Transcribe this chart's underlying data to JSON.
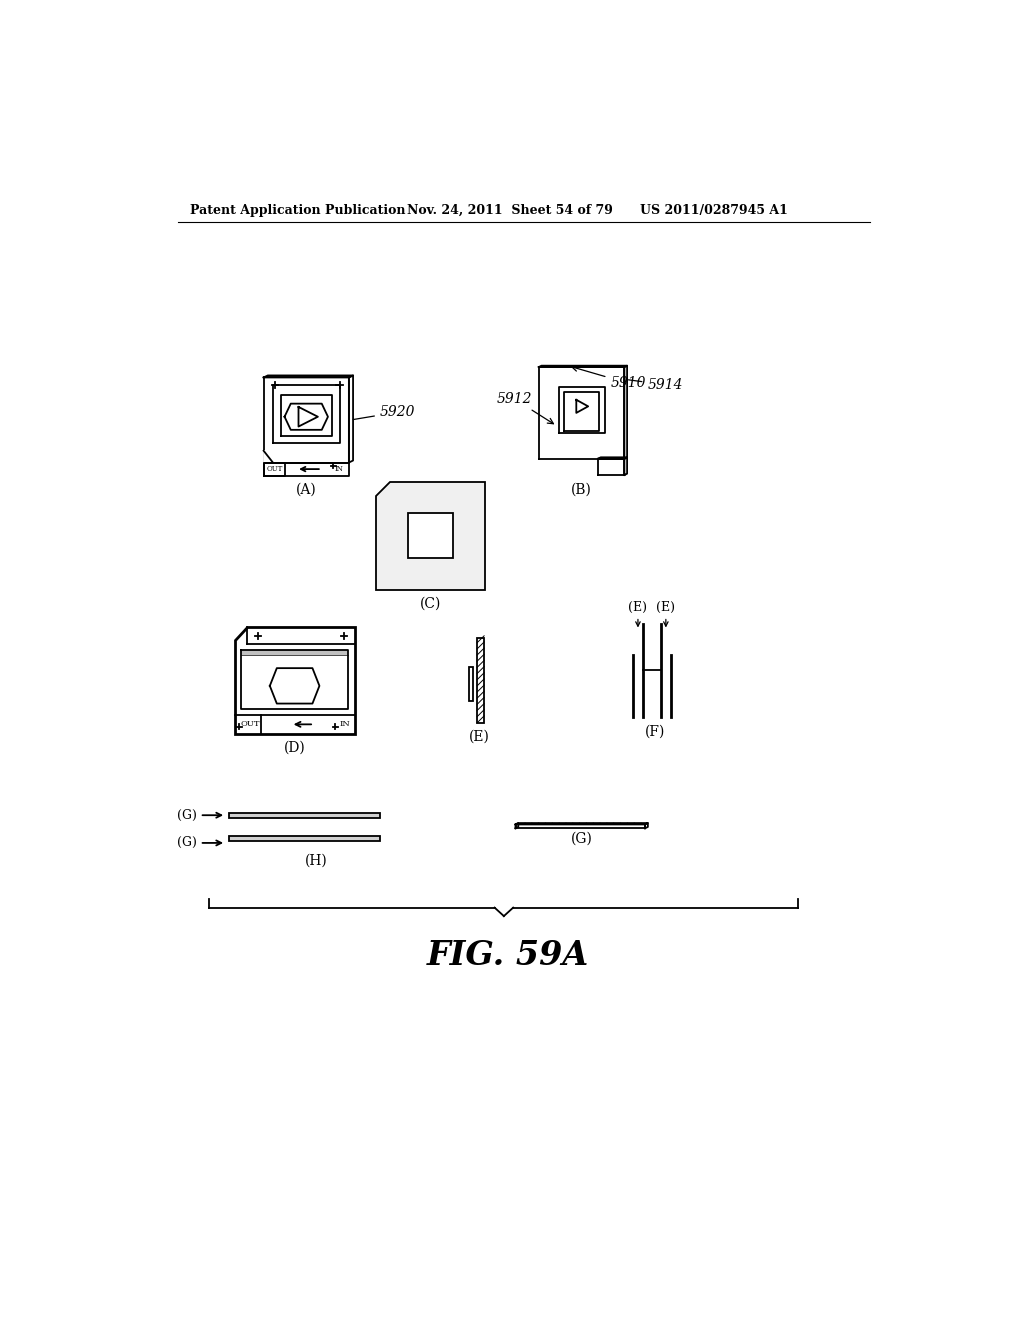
{
  "bg_color": "#ffffff",
  "header_left": "Patent Application Publication",
  "header_mid": "Nov. 24, 2011  Sheet 54 of 79",
  "header_right": "US 2011/0287945 A1",
  "fig_label": "FIG. 59A"
}
